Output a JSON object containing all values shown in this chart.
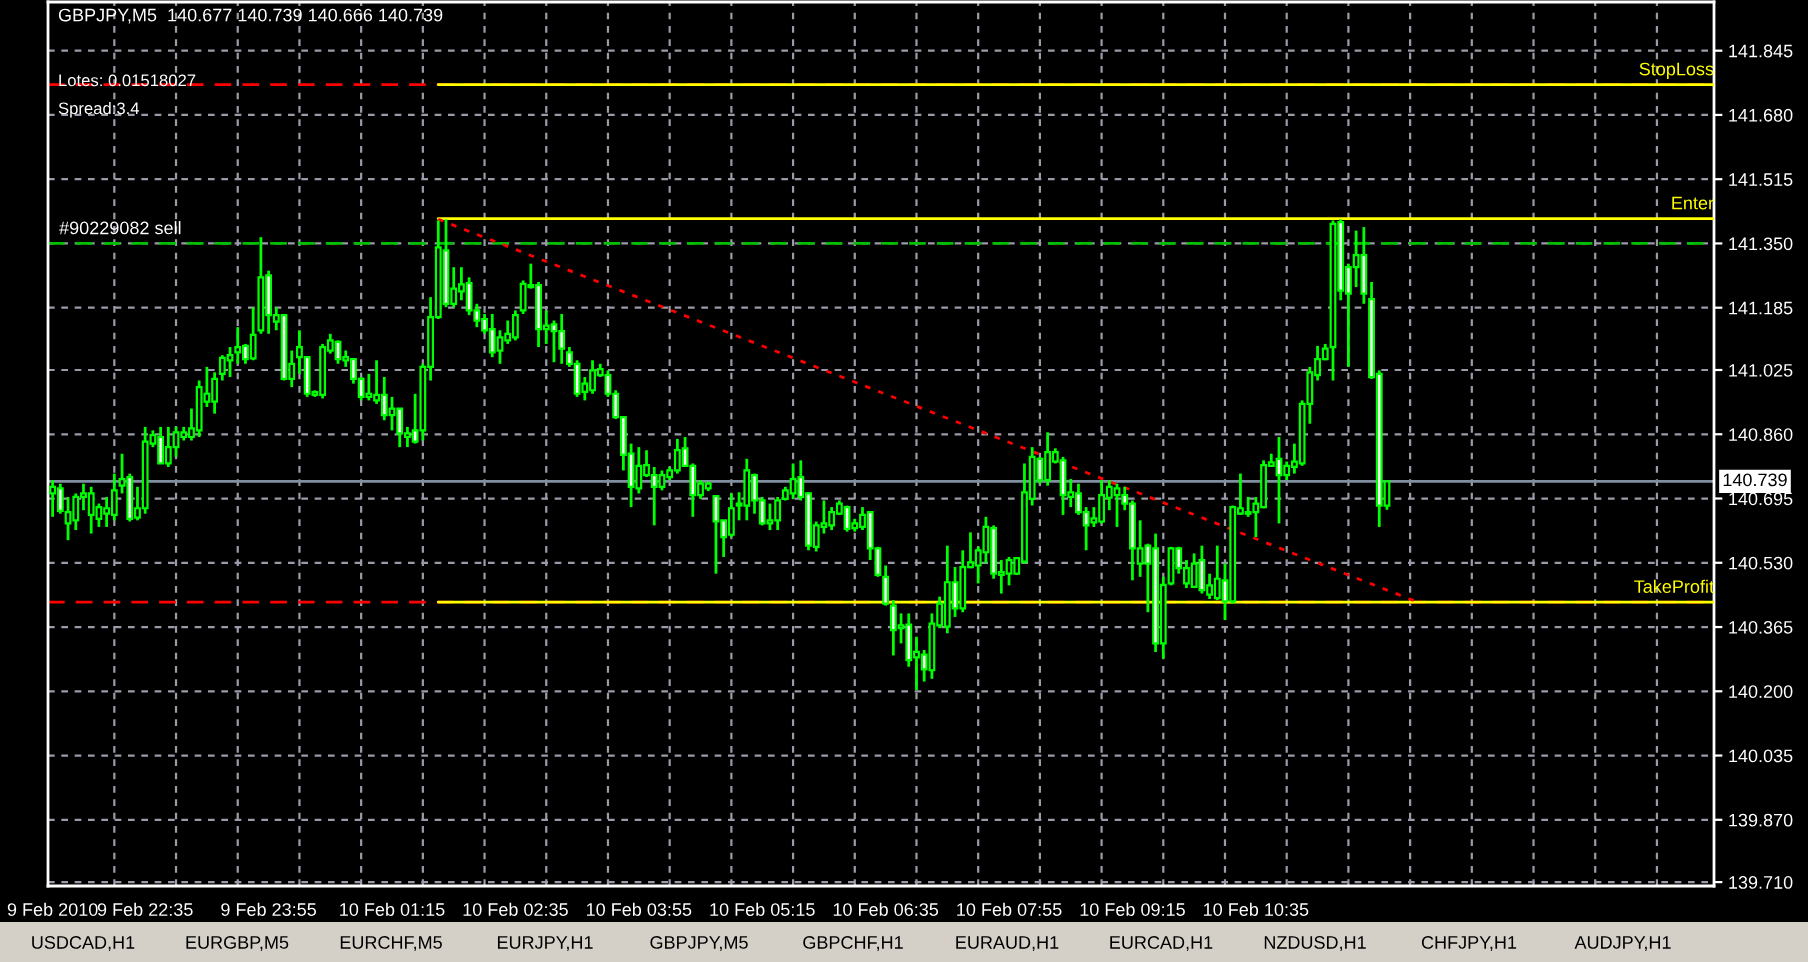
{
  "chart_data": {
    "type": "candlestick",
    "title": "GBPJPY,M5  140.677 140.739 140.666 140.739",
    "annotations": [
      "Lotes: 0.01518027",
      "Spread:3.4",
      "USDCAD,H1",
      "EURGBP,M5",
      "EURCHF,M5",
      "EURJPY,H1",
      "GBPJPY,M5",
      "GBPCHF,H1",
      "EURAUD,H1",
      "EURCAD,H1",
      "NZDUSD,H1",
      "CHFJPY,H1",
      "AUDJPY,H1"
    ],
    "x": [
      "2010-02-09T21:35",
      "2010-02-09T21:40",
      "2010-02-09T21:45",
      "2010-02-09T21:50",
      "2010-02-09T21:55",
      "2010-02-09T22:00",
      "2010-02-09T22:05",
      "2010-02-09T22:10",
      "2010-02-09T22:15",
      "2010-02-09T22:20",
      "2010-02-09T22:25",
      "2010-02-09T22:30",
      "2010-02-09T22:35",
      "2010-02-09T22:40",
      "2010-02-09T22:45",
      "2010-02-09T22:50",
      "2010-02-09T22:55",
      "2010-02-09T23:00",
      "2010-02-09T23:05",
      "2010-02-09T23:10",
      "2010-02-09T23:15",
      "2010-02-09T23:20",
      "2010-02-09T23:25",
      "2010-02-09T23:30",
      "2010-02-09T23:35",
      "2010-02-09T23:40",
      "2010-02-09T23:45",
      "2010-02-09T23:50",
      "2010-02-09T23:55",
      "2010-02-10T00:00",
      "2010-02-10T00:05",
      "2010-02-10T00:10",
      "2010-02-10T00:15",
      "2010-02-10T00:20",
      "2010-02-10T00:25",
      "2010-02-10T00:30",
      "2010-02-10T00:35",
      "2010-02-10T00:40",
      "2010-02-10T00:45",
      "2010-02-10T00:50",
      "2010-02-10T00:55",
      "2010-02-10T01:00",
      "2010-02-10T01:05",
      "2010-02-10T01:10",
      "2010-02-10T01:15",
      "2010-02-10T01:20",
      "2010-02-10T01:25",
      "2010-02-10T01:30",
      "2010-02-10T01:35",
      "2010-02-10T01:40",
      "2010-02-10T01:45",
      "2010-02-10T01:50",
      "2010-02-10T01:55",
      "2010-02-10T02:00",
      "2010-02-10T02:05",
      "2010-02-10T02:10",
      "2010-02-10T02:15",
      "2010-02-10T02:20",
      "2010-02-10T02:25",
      "2010-02-10T02:30",
      "2010-02-10T02:35",
      "2010-02-10T02:40",
      "2010-02-10T02:45",
      "2010-02-10T02:50",
      "2010-02-10T02:55",
      "2010-02-10T03:00",
      "2010-02-10T03:05",
      "2010-02-10T03:10",
      "2010-02-10T03:15",
      "2010-02-10T03:20",
      "2010-02-10T03:25",
      "2010-02-10T03:30",
      "2010-02-10T03:35",
      "2010-02-10T03:40",
      "2010-02-10T03:45",
      "2010-02-10T03:50",
      "2010-02-10T03:55",
      "2010-02-10T04:00",
      "2010-02-10T04:05",
      "2010-02-10T04:10",
      "2010-02-10T04:15",
      "2010-02-10T04:20",
      "2010-02-10T04:25",
      "2010-02-10T04:30",
      "2010-02-10T04:35",
      "2010-02-10T04:40",
      "2010-02-10T04:45",
      "2010-02-10T04:50",
      "2010-02-10T04:55",
      "2010-02-10T05:00",
      "2010-02-10T05:05",
      "2010-02-10T05:10",
      "2010-02-10T05:15",
      "2010-02-10T05:20",
      "2010-02-10T05:25",
      "2010-02-10T05:30",
      "2010-02-10T05:35",
      "2010-02-10T05:40",
      "2010-02-10T05:45",
      "2010-02-10T05:50",
      "2010-02-10T05:55",
      "2010-02-10T06:00",
      "2010-02-10T06:05",
      "2010-02-10T06:10",
      "2010-02-10T06:15",
      "2010-02-10T06:20",
      "2010-02-10T06:25",
      "2010-02-10T06:30",
      "2010-02-10T06:35",
      "2010-02-10T06:40",
      "2010-02-10T06:45",
      "2010-02-10T06:50",
      "2010-02-10T06:55",
      "2010-02-10T07:00",
      "2010-02-10T07:05",
      "2010-02-10T07:10",
      "2010-02-10T07:15",
      "2010-02-10T07:20",
      "2010-02-10T07:25",
      "2010-02-10T07:30",
      "2010-02-10T07:35",
      "2010-02-10T07:40",
      "2010-02-10T07:45",
      "2010-02-10T07:50",
      "2010-02-10T07:55",
      "2010-02-10T08:00",
      "2010-02-10T08:05",
      "2010-02-10T08:10",
      "2010-02-10T08:15",
      "2010-02-10T08:20",
      "2010-02-10T08:25",
      "2010-02-10T08:30",
      "2010-02-10T08:35",
      "2010-02-10T08:40",
      "2010-02-10T08:45",
      "2010-02-10T08:50",
      "2010-02-10T08:55",
      "2010-02-10T09:00",
      "2010-02-10T09:05",
      "2010-02-10T09:10",
      "2010-02-10T09:15",
      "2010-02-10T09:20",
      "2010-02-10T09:25",
      "2010-02-10T09:30",
      "2010-02-10T09:35",
      "2010-02-10T09:40",
      "2010-02-10T09:45",
      "2010-02-10T09:50",
      "2010-02-10T09:55",
      "2010-02-10T10:00",
      "2010-02-10T10:05",
      "2010-02-10T10:10",
      "2010-02-10T10:15",
      "2010-02-10T10:20",
      "2010-02-10T10:25",
      "2010-02-10T10:30",
      "2010-02-10T10:35",
      "2010-02-10T10:40",
      "2010-02-10T10:45",
      "2010-02-10T10:50",
      "2010-02-10T10:55",
      "2010-02-10T11:00",
      "2010-02-10T11:05",
      "2010-02-10T11:10",
      "2010-02-10T11:15",
      "2010-02-10T11:20",
      "2010-02-10T11:25",
      "2010-02-10T11:30",
      "2010-02-10T11:35",
      "2010-02-10T11:40",
      "2010-02-10T11:45",
      "2010-02-10T11:50",
      "2010-02-10T11:55",
      "2010-02-10T12:00"
    ],
    "series": [
      {
        "color": "#00ff00",
        "ohlc": [
          [
            140.708,
            140.742,
            140.648,
            140.725
          ],
          [
            140.721,
            140.733,
            140.656,
            140.663
          ],
          [
            140.631,
            140.699,
            140.588,
            140.66
          ],
          [
            140.639,
            140.708,
            140.614,
            140.699
          ],
          [
            140.699,
            140.733,
            140.665,
            140.708
          ],
          [
            140.653,
            140.725,
            140.605,
            140.708
          ],
          [
            140.643,
            140.682,
            140.622,
            140.673
          ],
          [
            140.656,
            140.699,
            140.622,
            140.67
          ],
          [
            140.653,
            140.759,
            140.639,
            140.716
          ],
          [
            140.728,
            140.81,
            140.708,
            140.745
          ],
          [
            140.75,
            140.759,
            140.636,
            140.643
          ],
          [
            140.646,
            140.725,
            140.639,
            140.67
          ],
          [
            140.67,
            140.879,
            140.656,
            140.841
          ],
          [
            140.836,
            140.87,
            140.827,
            140.858
          ],
          [
            140.853,
            140.879,
            140.785,
            140.785
          ],
          [
            140.785,
            140.879,
            140.776,
            140.827
          ],
          [
            140.827,
            140.879,
            140.802,
            140.865
          ],
          [
            140.853,
            140.879,
            140.844,
            140.865
          ],
          [
            140.853,
            140.926,
            140.844,
            140.875
          ],
          [
            140.87,
            140.998,
            140.853,
            140.981
          ],
          [
            140.944,
            141.033,
            140.93,
            140.964
          ],
          [
            140.944,
            141.019,
            140.913,
            141.002
          ],
          [
            141.015,
            141.063,
            140.998,
            141.056
          ],
          [
            141.05,
            141.084,
            141.007,
            141.063
          ],
          [
            141.07,
            141.135,
            141.041,
            141.084
          ],
          [
            141.087,
            141.092,
            141.041,
            141.053
          ],
          [
            141.055,
            141.186,
            141.05,
            141.115
          ],
          [
            141.127,
            141.366,
            141.118,
            141.263
          ],
          [
            141.268,
            141.28,
            141.118,
            141.166
          ],
          [
            141.149,
            141.186,
            141.127,
            141.166
          ],
          [
            141.166,
            141.166,
            140.998,
            141.002
          ],
          [
            141.002,
            141.075,
            140.981,
            141.041
          ],
          [
            141.058,
            141.127,
            141.015,
            141.084
          ],
          [
            141.058,
            141.058,
            140.956,
            140.964
          ],
          [
            140.961,
            140.973,
            140.956,
            140.968
          ],
          [
            140.961,
            141.092,
            140.952,
            141.084
          ],
          [
            141.075,
            141.118,
            141.067,
            141.101
          ],
          [
            141.097,
            141.101,
            141.041,
            141.053
          ],
          [
            141.05,
            141.075,
            141.033,
            141.058
          ],
          [
            141.053,
            141.053,
            140.99,
            141.002
          ],
          [
            141.002,
            141.007,
            140.947,
            140.956
          ],
          [
            140.956,
            141.015,
            140.947,
            140.964
          ],
          [
            140.947,
            141.05,
            140.938,
            140.961
          ],
          [
            140.961,
            141.007,
            140.896,
            140.909
          ],
          [
            140.909,
            140.956,
            140.87,
            140.926
          ],
          [
            140.926,
            140.926,
            140.827,
            140.862
          ],
          [
            140.853,
            140.879,
            140.827,
            140.862
          ],
          [
            140.87,
            140.964,
            140.836,
            140.841
          ],
          [
            140.87,
            141.041,
            140.844,
            141.033
          ],
          [
            141.033,
            141.212,
            140.998,
            141.161
          ],
          [
            141.161,
            141.409,
            141.156,
            141.34
          ],
          [
            141.332,
            141.412,
            141.186,
            141.195
          ],
          [
            141.195,
            141.289,
            141.186,
            141.234
          ],
          [
            141.227,
            141.289,
            141.204,
            141.245
          ],
          [
            141.248,
            141.263,
            141.166,
            141.178
          ],
          [
            141.178,
            141.195,
            141.135,
            141.152
          ],
          [
            141.156,
            141.169,
            141.118,
            141.127
          ],
          [
            141.13,
            141.169,
            141.058,
            141.07
          ],
          [
            141.075,
            141.127,
            141.041,
            141.109
          ],
          [
            141.101,
            141.152,
            141.092,
            141.118
          ],
          [
            141.109,
            141.178,
            141.101,
            141.166
          ],
          [
            141.178,
            141.255,
            141.169,
            141.246
          ],
          [
            141.238,
            141.298,
            141.234,
            141.243
          ],
          [
            141.243,
            141.251,
            141.084,
            141.13
          ],
          [
            141.13,
            141.178,
            141.092,
            141.139
          ],
          [
            141.142,
            141.152,
            141.045,
            141.125
          ],
          [
            141.125,
            141.169,
            141.041,
            141.08
          ],
          [
            141.07,
            141.084,
            141.033,
            141.041
          ],
          [
            141.041,
            141.05,
            140.956,
            140.964
          ],
          [
            140.969,
            141.007,
            140.947,
            140.99
          ],
          [
            140.973,
            141.05,
            140.964,
            141.024
          ],
          [
            141.012,
            141.041,
            141.007,
            141.027
          ],
          [
            141.012,
            141.024,
            140.956,
            140.964
          ],
          [
            140.964,
            140.973,
            140.899,
            140.904
          ],
          [
            140.904,
            140.904,
            140.767,
            140.807
          ],
          [
            140.81,
            140.836,
            140.673,
            140.725
          ],
          [
            140.721,
            140.827,
            140.708,
            140.779
          ],
          [
            140.755,
            140.819,
            140.75,
            140.781
          ],
          [
            140.755,
            140.776,
            140.626,
            140.725
          ],
          [
            140.725,
            140.767,
            140.716,
            140.755
          ],
          [
            140.75,
            140.776,
            140.742,
            140.767
          ],
          [
            140.767,
            140.848,
            140.759,
            140.819
          ],
          [
            140.824,
            140.853,
            140.776,
            140.779
          ],
          [
            140.779,
            140.785,
            140.648,
            140.704
          ],
          [
            140.704,
            140.742,
            140.694,
            140.733
          ],
          [
            140.721,
            140.738,
            140.714,
            140.733
          ],
          [
            140.701,
            140.701,
            140.502,
            140.636
          ],
          [
            140.639,
            140.639,
            140.545,
            140.596
          ],
          [
            140.602,
            140.708,
            140.596,
            140.67
          ],
          [
            140.677,
            140.711,
            140.639,
            140.682
          ],
          [
            140.677,
            140.797,
            140.639,
            140.767
          ],
          [
            140.755,
            140.759,
            140.656,
            140.69
          ],
          [
            140.69,
            140.699,
            140.626,
            140.631
          ],
          [
            140.631,
            140.682,
            140.614,
            140.639
          ],
          [
            140.639,
            140.699,
            140.614,
            140.69
          ],
          [
            140.694,
            140.725,
            140.69,
            140.716
          ],
          [
            140.708,
            140.785,
            140.694,
            140.745
          ],
          [
            140.75,
            140.793,
            140.69,
            140.699
          ],
          [
            140.708,
            140.711,
            140.562,
            140.574
          ],
          [
            140.571,
            140.636,
            140.559,
            140.626
          ],
          [
            140.622,
            140.69,
            140.605,
            140.631
          ],
          [
            140.626,
            140.673,
            140.614,
            140.66
          ],
          [
            140.656,
            140.69,
            140.653,
            140.682
          ],
          [
            140.673,
            140.677,
            140.61,
            140.617
          ],
          [
            140.619,
            140.643,
            140.61,
            140.631
          ],
          [
            140.622,
            140.673,
            140.614,
            140.653
          ],
          [
            140.66,
            140.66,
            140.537,
            140.567
          ],
          [
            140.567,
            140.571,
            140.494,
            140.499
          ],
          [
            140.494,
            140.523,
            140.42,
            140.425
          ],
          [
            140.42,
            140.434,
            140.292,
            140.357
          ],
          [
            140.362,
            140.4,
            140.323,
            140.369
          ],
          [
            140.371,
            140.4,
            140.263,
            140.28
          ],
          [
            140.287,
            140.34,
            140.203,
            140.301
          ],
          [
            140.294,
            140.306,
            140.225,
            140.256
          ],
          [
            140.254,
            140.4,
            140.232,
            140.374
          ],
          [
            140.369,
            140.443,
            140.362,
            140.425
          ],
          [
            140.366,
            140.574,
            140.349,
            140.48
          ],
          [
            140.48,
            140.519,
            140.391,
            140.413
          ],
          [
            140.413,
            140.562,
            140.403,
            140.519
          ],
          [
            140.519,
            140.608,
            140.516,
            140.531
          ],
          [
            140.523,
            140.571,
            140.477,
            140.562
          ],
          [
            140.557,
            140.648,
            140.528,
            140.622
          ],
          [
            140.619,
            140.626,
            140.489,
            140.502
          ],
          [
            140.499,
            140.537,
            140.451,
            140.506
          ],
          [
            140.502,
            140.545,
            140.472,
            140.537
          ],
          [
            140.502,
            140.545,
            140.499,
            140.542
          ],
          [
            140.533,
            140.785,
            140.528,
            140.711
          ],
          [
            140.694,
            140.827,
            140.677,
            140.802
          ],
          [
            140.797,
            140.802,
            140.733,
            140.742
          ],
          [
            140.742,
            140.865,
            140.728,
            140.814
          ],
          [
            140.79,
            140.824,
            140.785,
            140.814
          ],
          [
            140.793,
            140.802,
            140.653,
            140.704
          ],
          [
            140.699,
            140.745,
            140.673,
            140.711
          ],
          [
            140.708,
            140.733,
            140.653,
            140.66
          ],
          [
            140.66,
            140.673,
            140.562,
            140.626
          ],
          [
            140.634,
            140.673,
            140.622,
            140.644
          ],
          [
            140.636,
            140.742,
            140.631,
            140.704
          ],
          [
            140.697,
            140.742,
            140.665,
            140.725
          ],
          [
            140.704,
            140.733,
            140.622,
            140.721
          ],
          [
            140.704,
            140.725,
            140.665,
            140.682
          ],
          [
            140.682,
            140.69,
            140.485,
            140.567
          ],
          [
            140.528,
            140.639,
            140.494,
            140.567
          ],
          [
            140.574,
            140.579,
            140.403,
            140.528
          ],
          [
            140.567,
            140.605,
            140.301,
            140.323
          ],
          [
            140.323,
            140.494,
            140.284,
            140.473
          ],
          [
            140.477,
            140.571,
            140.472,
            140.567
          ],
          [
            140.567,
            140.571,
            140.502,
            140.516
          ],
          [
            140.477,
            140.537,
            140.465,
            140.516
          ],
          [
            140.468,
            140.554,
            140.465,
            140.528
          ],
          [
            140.537,
            140.574,
            140.451,
            140.46
          ],
          [
            140.448,
            140.502,
            140.437,
            140.472
          ],
          [
            140.439,
            140.574,
            140.434,
            140.489
          ],
          [
            140.485,
            140.528,
            140.383,
            140.431
          ],
          [
            140.431,
            140.677,
            140.425,
            140.673
          ],
          [
            140.656,
            140.759,
            140.653,
            140.67
          ],
          [
            140.66,
            140.699,
            140.648,
            140.656
          ],
          [
            140.66,
            140.699,
            140.596,
            140.682
          ],
          [
            140.673,
            140.793,
            140.67,
            140.781
          ],
          [
            140.779,
            140.81,
            140.776,
            140.788
          ],
          [
            140.797,
            140.853,
            140.631,
            140.755
          ],
          [
            140.755,
            140.79,
            140.742,
            140.779
          ],
          [
            140.776,
            140.836,
            140.759,
            140.79
          ],
          [
            140.785,
            140.947,
            140.779,
            140.938
          ],
          [
            140.938,
            141.033,
            140.887,
            141.019
          ],
          [
            141.012,
            141.087,
            140.998,
            141.053
          ],
          [
            141.053,
            141.092,
            141.05,
            141.08
          ],
          [
            141.084,
            141.409,
            140.998,
            141.4
          ],
          [
            141.405,
            141.412,
            141.204,
            141.229
          ],
          [
            141.289,
            141.298,
            141.033,
            141.221
          ],
          [
            141.289,
            141.383,
            141.238,
            141.32
          ],
          [
            141.32,
            141.392,
            141.195,
            141.221
          ],
          [
            141.207,
            141.251,
            141.002,
            141.007
          ],
          [
            141.015,
            141.024,
            140.622,
            140.677
          ],
          [
            140.677,
            140.739,
            140.666,
            140.739
          ]
        ]
      },
      {
        "type": "line",
        "name": "StopLoss",
        "color": "#ffff00",
        "line_style": "solid",
        "x": [
          "2010-02-10T01:45",
          "2010-02-10T15:32"
        ],
        "values": [
          141.758,
          141.758
        ]
      },
      {
        "type": "line",
        "name": "Enter",
        "color": "#ffff00",
        "line_style": "solid",
        "x": [
          "2010-02-10T01:45",
          "2010-02-10T15:32"
        ],
        "values": [
          141.414,
          141.414
        ]
      },
      {
        "type": "line",
        "name": "TakeProfit",
        "color": "#ffff00",
        "line_style": "solid",
        "x": [
          "2010-02-10T01:45",
          "2010-02-10T15:32"
        ],
        "values": [
          140.429,
          140.429
        ]
      },
      {
        "type": "line",
        "color": "#ff0000",
        "line_style": "dotted",
        "x": [
          "2010-02-10T01:45",
          "2010-02-10T12:20"
        ],
        "values": [
          141.412,
          140.429
        ]
      }
    ],
    "ref_lines": [
      {
        "axis": "y",
        "value": 141.758,
        "label": null,
        "color": "#ff0000",
        "line_style": "dashed"
      },
      {
        "axis": "y",
        "value": 140.429,
        "label": null,
        "color": "#ff0000",
        "line_style": "dashed"
      },
      {
        "axis": "y",
        "value": 141.35,
        "label": "#90229082 sell",
        "color": "#00c000",
        "line_style": "dashed"
      },
      {
        "axis": "y",
        "value": 140.739,
        "label": "140.739",
        "color": "#8090a0",
        "line_style": "solid"
      }
    ],
    "xlim": [
      "2010-02-09T21:32",
      "2010-02-10T15:32"
    ],
    "xticks": [
      {
        "value": "2010-02-09T21:35",
        "label": "9 Feb 2010"
      },
      {
        "value": "2010-02-09T22:15",
        "label": null
      },
      {
        "value": "2010-02-09T22:35",
        "label": "9 Feb 22:35"
      },
      {
        "value": "2010-02-09T22:55",
        "label": null
      },
      {
        "value": "2010-02-09T23:35",
        "label": null
      },
      {
        "value": "2010-02-09T23:55",
        "label": "9 Feb 23:55"
      },
      {
        "value": "2010-02-10T00:15",
        "label": null
      },
      {
        "value": "2010-02-10T00:55",
        "label": null
      },
      {
        "value": "2010-02-10T01:15",
        "label": "10 Feb 01:15"
      },
      {
        "value": "2010-02-10T01:35",
        "label": null
      },
      {
        "value": "2010-02-10T02:15",
        "label": null
      },
      {
        "value": "2010-02-10T02:35",
        "label": "10 Feb 02:35"
      },
      {
        "value": "2010-02-10T02:55",
        "label": null
      },
      {
        "value": "2010-02-10T03:35",
        "label": null
      },
      {
        "value": "2010-02-10T03:55",
        "label": "10 Feb 03:55"
      },
      {
        "value": "2010-02-10T04:15",
        "label": null
      },
      {
        "value": "2010-02-10T04:55",
        "label": null
      },
      {
        "value": "2010-02-10T05:15",
        "label": "10 Feb 05:15"
      },
      {
        "value": "2010-02-10T05:35",
        "label": null
      },
      {
        "value": "2010-02-10T06:15",
        "label": null
      },
      {
        "value": "2010-02-10T06:35",
        "label": "10 Feb 06:35"
      },
      {
        "value": "2010-02-10T06:55",
        "label": null
      },
      {
        "value": "2010-02-10T07:35",
        "label": null
      },
      {
        "value": "2010-02-10T07:55",
        "label": "10 Feb 07:55"
      },
      {
        "value": "2010-02-10T08:15",
        "label": null
      },
      {
        "value": "2010-02-10T08:55",
        "label": null
      },
      {
        "value": "2010-02-10T09:15",
        "label": "10 Feb 09:15"
      },
      {
        "value": "2010-02-10T09:35",
        "label": null
      },
      {
        "value": "2010-02-10T10:15",
        "label": null
      },
      {
        "value": "2010-02-10T10:35",
        "label": "10 Feb 10:35"
      },
      {
        "value": "2010-02-10T10:55",
        "label": null
      },
      {
        "value": "2010-02-10T11:35",
        "label": null
      },
      {
        "value": "2010-02-10T12:15",
        "label": null
      },
      {
        "value": "2010-02-10T12:55",
        "label": null
      },
      {
        "value": "2010-02-10T13:35",
        "label": null
      },
      {
        "value": "2010-02-10T14:15",
        "label": null
      },
      {
        "value": "2010-02-10T14:55",
        "label": null
      }
    ],
    "ylim": [
      139.7,
      141.97
    ],
    "yticks": [
      141.845,
      {
        "value": 141.68,
        "label": "141.680"
      },
      141.515,
      {
        "value": 141.35,
        "label": "141.350"
      },
      141.185,
      141.025,
      {
        "value": 140.86,
        "label": "140.860"
      },
      140.695,
      {
        "value": 140.53,
        "label": "140.530"
      },
      140.365,
      {
        "value": 140.2,
        "label": "140.200"
      },
      140.035,
      {
        "value": 139.87,
        "label": "139.870"
      },
      {
        "value": 139.71,
        "label": "139.710"
      }
    ],
    "grid": true
  }
}
